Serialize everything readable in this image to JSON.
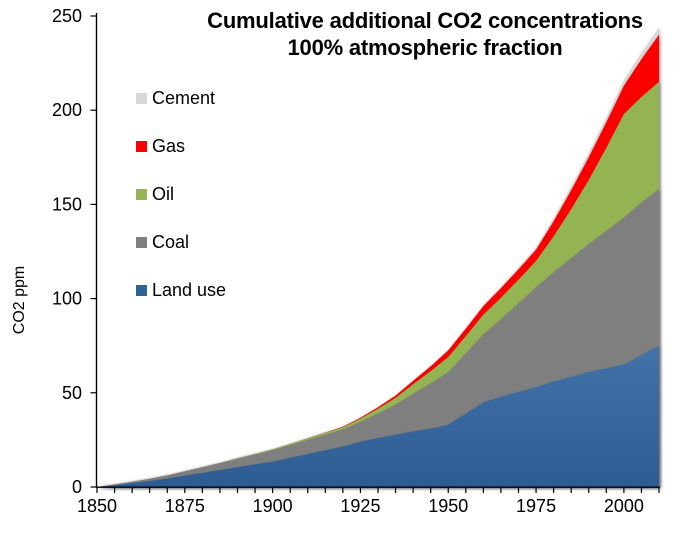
{
  "title": {
    "line1": "Cumulative additional CO2 concentrations",
    "line2": "100% atmospheric fraction"
  },
  "y_axis": {
    "label": "CO2 ppm",
    "ticks": [
      0,
      50,
      100,
      150,
      200,
      250
    ],
    "min": 0,
    "max": 250
  },
  "x_axis": {
    "major_ticks": [
      1850,
      1875,
      1900,
      1925,
      1950,
      1975,
      2000
    ],
    "minor_step": 5,
    "min": 1850,
    "max": 2010
  },
  "legend": [
    {
      "label": "Cement",
      "color": "#d8d8d8"
    },
    {
      "label": "Gas",
      "color": "#fa0000"
    },
    {
      "label": "Oil",
      "color": "#94b454"
    },
    {
      "label": "Coal",
      "color": "#7f7f7f"
    },
    {
      "label": "Land use",
      "color": "#2e6295"
    }
  ],
  "chart_data": {
    "type": "area",
    "stacked": true,
    "title": "Cumulative additional CO2 concentrations 100% atmospheric fraction",
    "ylabel": "CO2 ppm",
    "ylim": [
      0,
      250
    ],
    "xlim": [
      1850,
      2010
    ],
    "grid": false,
    "legend_position": "inside-upper-left",
    "x": [
      1850,
      1855,
      1860,
      1865,
      1870,
      1875,
      1880,
      1885,
      1890,
      1895,
      1900,
      1905,
      1910,
      1915,
      1920,
      1925,
      1930,
      1935,
      1940,
      1945,
      1950,
      1955,
      1960,
      1965,
      1970,
      1975,
      1980,
      1985,
      1990,
      1995,
      2000,
      2005,
      2010
    ],
    "series": [
      {
        "name": "Land use",
        "color": "#336ba4",
        "values": [
          0,
          1,
          2,
          3.2,
          4.5,
          6,
          7.5,
          9,
          10.5,
          12,
          13.5,
          15.5,
          17.5,
          19.5,
          21.5,
          24,
          26,
          27.8,
          29.5,
          31,
          33,
          39,
          45,
          48,
          50.5,
          53,
          56,
          58.5,
          61,
          63,
          65,
          70,
          75
        ]
      },
      {
        "name": "Coal",
        "color": "#7f7f7f",
        "values": [
          0,
          0.3,
          0.7,
          1.1,
          1.6,
          2.3,
          3,
          3.7,
          4.5,
          5.2,
          6,
          6.7,
          7.5,
          8.2,
          9,
          10.5,
          13,
          16,
          20,
          24,
          28,
          32,
          36,
          41,
          47,
          53,
          58,
          63,
          68,
          73,
          78,
          81,
          83
        ]
      },
      {
        "name": "Oil",
        "color": "#94b454",
        "values": [
          0,
          0,
          0,
          0,
          0,
          0,
          0,
          0,
          0.2,
          0.3,
          0.4,
          0.6,
          0.8,
          1,
          1.2,
          1.8,
          2.5,
          3.5,
          5,
          6.5,
          8,
          9,
          10.5,
          11.5,
          12.5,
          14,
          19,
          26,
          34,
          44,
          55,
          56,
          57
        ]
      },
      {
        "name": "Gas",
        "color": "#fa0000",
        "values": [
          0,
          0,
          0,
          0,
          0,
          0,
          0,
          0,
          0,
          0,
          0,
          0,
          0.1,
          0.2,
          0.3,
          0.5,
          0.8,
          1.2,
          1.8,
          2.5,
          3.5,
          4,
          4.5,
          5,
          5.5,
          6,
          8,
          10,
          12,
          13.5,
          15,
          20,
          25
        ]
      },
      {
        "name": "Cement",
        "color": "#d8d8d8",
        "values": [
          0,
          0,
          0,
          0,
          0,
          0,
          0,
          0,
          0,
          0,
          0,
          0,
          0,
          0,
          0,
          0,
          0.2,
          0.3,
          0.4,
          0.45,
          0.5,
          0.6,
          0.7,
          0.85,
          1,
          1.2,
          1.7,
          2,
          2.3,
          2.6,
          3,
          3.5,
          4
        ]
      }
    ]
  }
}
